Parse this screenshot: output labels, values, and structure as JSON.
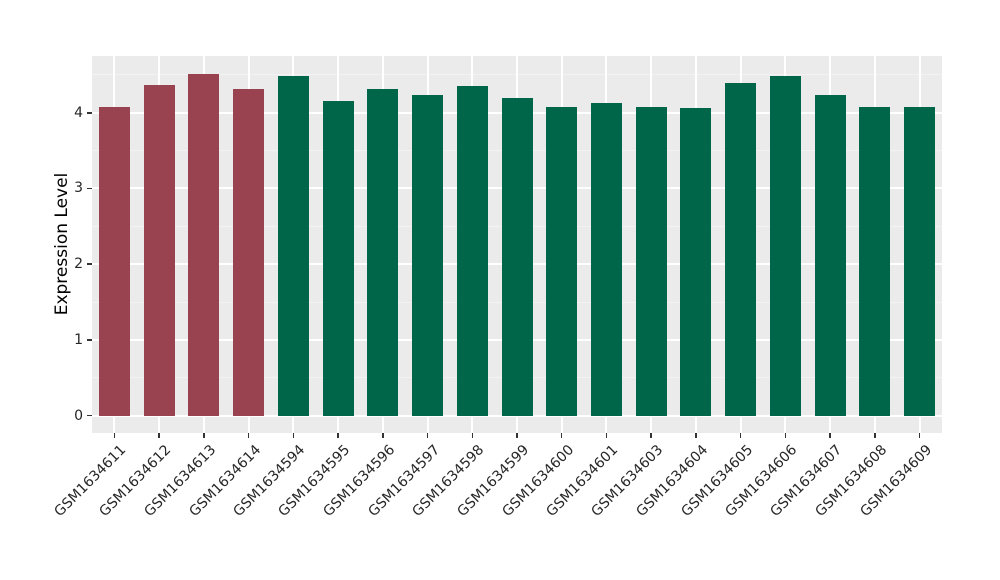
{
  "figure": {
    "background": "#FFFFFF"
  },
  "chart_data": {
    "type": "bar",
    "title": "",
    "xlabel": "",
    "ylabel": "Expression Level",
    "ylim": [
      -0.23,
      4.75
    ],
    "yticks": [
      0,
      1,
      2,
      3,
      4
    ],
    "yticks_minor": [
      0.5,
      1.5,
      2.5,
      3.5,
      4.5
    ],
    "grid": "white major and minor horizontal gridlines, white vertical major gridlines at category centers, on grey panel",
    "legend_position": "none",
    "x_tick_label_rotation_deg": 45,
    "categories": [
      "GSM1634611",
      "GSM1634612",
      "GSM1634613",
      "GSM1634614",
      "GSM1634594",
      "GSM1634595",
      "GSM1634596",
      "GSM1634597",
      "GSM1634598",
      "GSM1634599",
      "GSM1634600",
      "GSM1634601",
      "GSM1634603",
      "GSM1634604",
      "GSM1634605",
      "GSM1634606",
      "GSM1634607",
      "GSM1634608",
      "GSM1634609"
    ],
    "values": [
      4.07,
      4.37,
      4.51,
      4.31,
      4.48,
      4.15,
      4.32,
      4.24,
      4.36,
      4.2,
      4.07,
      4.13,
      4.08,
      4.06,
      4.39,
      4.49,
      4.24,
      4.07,
      4.08
    ],
    "groups": [
      "red",
      "red",
      "red",
      "red",
      "green",
      "green",
      "green",
      "green",
      "green",
      "green",
      "green",
      "green",
      "green",
      "green",
      "green",
      "green",
      "green",
      "green",
      "green"
    ],
    "palette": {
      "red": "#9A4350",
      "green": "#006649"
    },
    "colors": {
      "panel_background": "#EBEBEB",
      "grid_major": "#FFFFFF",
      "grid_minor": "#F3F3F3",
      "axis_text": "#262626",
      "axis_title": "#000000",
      "tick_mark": "#333333"
    }
  }
}
